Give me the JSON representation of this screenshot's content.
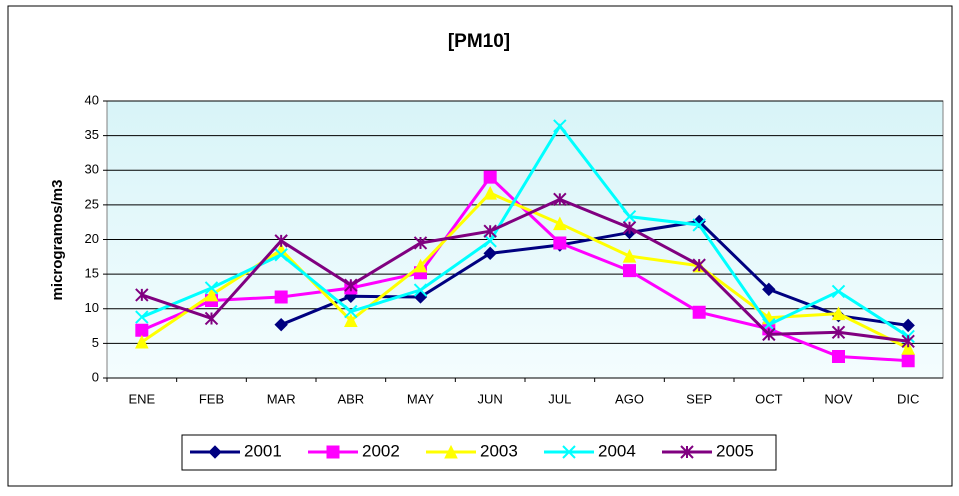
{
  "chart_data": {
    "type": "line",
    "title": "[PM10]",
    "y_label": "microgramos/m3",
    "categories": [
      "ENE",
      "FEB",
      "MAR",
      "ABR",
      "MAY",
      "JUN",
      "JUL",
      "AGO",
      "SEP",
      "OCT",
      "NOV",
      "DIC"
    ],
    "series": [
      {
        "name": "2001",
        "color": "#000080",
        "marker": "diamond",
        "values": [
          null,
          null,
          7.7,
          11.8,
          11.7,
          18,
          19.2,
          21,
          22.6,
          12.8,
          9,
          7.6
        ]
      },
      {
        "name": "2002",
        "color": "#ff00ff",
        "marker": "square",
        "values": [
          6.9,
          11.2,
          11.7,
          13,
          15.2,
          29,
          19.5,
          15.5,
          9.5,
          7.1,
          3.1,
          2.5
        ]
      },
      {
        "name": "2003",
        "color": "#ffff00",
        "marker": "triangle",
        "values": [
          5.2,
          12,
          18.5,
          8.3,
          16.2,
          26.7,
          22.3,
          17.6,
          16.2,
          8.7,
          9.3,
          4.3
        ]
      },
      {
        "name": "2004",
        "color": "#00ffff",
        "marker": "x",
        "values": [
          8.8,
          13,
          17.8,
          9.6,
          12.7,
          19.8,
          36.4,
          23.3,
          22.1,
          7.7,
          12.5,
          6
        ]
      },
      {
        "name": "2005",
        "color": "#800080",
        "marker": "star",
        "values": [
          12,
          8.6,
          19.8,
          13.4,
          19.5,
          21.2,
          25.8,
          21.7,
          16.3,
          6.3,
          6.6,
          5.3
        ]
      }
    ],
    "ylim": [
      0,
      40
    ],
    "yticks": [
      0,
      5,
      10,
      15,
      20,
      25,
      30,
      35,
      40
    ],
    "grid": true,
    "legend": "bottom"
  }
}
